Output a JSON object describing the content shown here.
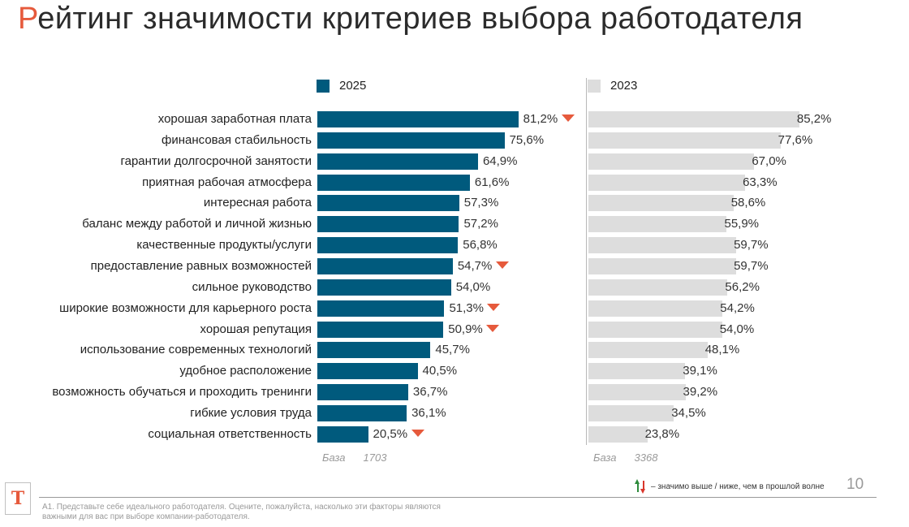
{
  "title": "Рейтинг значимости критериев выбора работодателя",
  "legend": {
    "current": "2025",
    "previous": "2023"
  },
  "colors": {
    "current": "#005a7d",
    "previous": "#dddddd",
    "accent": "#e65a3c",
    "up": "#2e8b3c",
    "down": "#d9362b"
  },
  "chart_data": {
    "type": "bar",
    "orientation": "horizontal",
    "categories": [
      "хорошая заработная плата",
      "финансовая стабильность",
      "гарантии долгосрочной занятости",
      "приятная рабочая атмосфера",
      "интересная работа",
      "баланс между работой и личной жизнью",
      "качественные продукты/услуги",
      "предоставление равных возможностей",
      "сильное руководство",
      "широкие возможности для карьерного роста",
      "хорошая репутация",
      "использование современных технологий",
      "удобное расположение",
      "возможность обучаться и проходить тренинги",
      "гибкие условия труда",
      "социальная ответственность"
    ],
    "series": [
      {
        "name": "2025",
        "values": [
          81.2,
          75.6,
          64.9,
          61.6,
          57.3,
          57.2,
          56.8,
          54.7,
          54.0,
          51.3,
          50.9,
          45.7,
          40.5,
          36.7,
          36.1,
          20.5
        ],
        "labels": [
          "81,2%",
          "75,6%",
          "64,9%",
          "61,6%",
          "57,3%",
          "57,2%",
          "56,8%",
          "54,7%",
          "54,0%",
          "51,3%",
          "50,9%",
          "45,7%",
          "40,5%",
          "36,7%",
          "36,1%",
          "20,5%"
        ],
        "significance": [
          "down",
          "",
          "",
          "",
          "",
          "",
          "",
          "down",
          "",
          "down",
          "down",
          "",
          "",
          "",
          "",
          "down"
        ]
      },
      {
        "name": "2023",
        "values": [
          85.2,
          77.6,
          67.0,
          63.3,
          58.6,
          55.9,
          59.7,
          59.7,
          56.2,
          54.2,
          54.0,
          48.1,
          39.1,
          39.2,
          34.5,
          23.8
        ],
        "labels": [
          "85,2%",
          "77,6%",
          "67,0%",
          "63,3%",
          "58,6%",
          "55,9%",
          "59,7%",
          "59,7%",
          "56,2%",
          "54,2%",
          "54,0%",
          "48,1%",
          "39,1%",
          "39,2%",
          "34,5%",
          "23,8%"
        ]
      }
    ],
    "xlim": [
      0,
      100
    ]
  },
  "base": {
    "label": "База",
    "n_2025": "1703",
    "n_2023": "3368"
  },
  "significance_legend": "– значимо выше / ниже, чем в прошлой волне",
  "page_number": "10",
  "logo_letter": "T",
  "footnote": "А1. Представьте себе идеального работодателя. Оцените, пожалуйста, насколько эти факторы являются важными для вас при выборе компании-работодателя."
}
